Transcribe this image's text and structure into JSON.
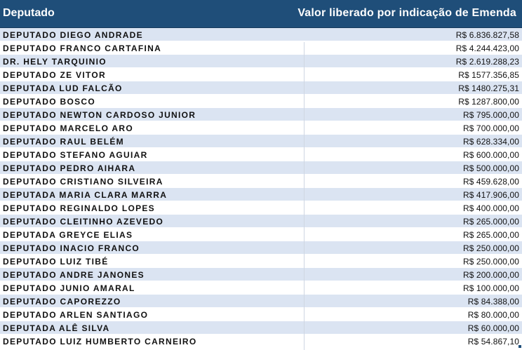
{
  "table": {
    "header": {
      "col_name": "Deputado",
      "col_value": "Valor liberado por indicação de Emenda"
    },
    "rows": [
      {
        "name": "DEPUTADO DIEGO ANDRADE",
        "value": "R$ 6.836.827,58"
      },
      {
        "name": "DEPUTADO FRANCO CARTAFINA",
        "value": "R$ 4.244.423,00"
      },
      {
        "name": "DR. HELY TARQUINIO",
        "value": "R$ 2.619.288,23"
      },
      {
        "name": "DEPUTADO ZE VITOR",
        "value": "R$ 1577.356,85"
      },
      {
        "name": "DEPUTADA LUD FALCÃO",
        "value": "R$ 1480.275,31"
      },
      {
        "name": "DEPUTADO BOSCO",
        "value": "R$ 1287.800,00"
      },
      {
        "name": "DEPUTADO NEWTON CARDOSO JUNIOR",
        "value": "R$ 795.000,00"
      },
      {
        "name": "DEPUTADO MARCELO ARO",
        "value": "R$ 700.000,00"
      },
      {
        "name": "DEPUTADO  RAUL BELÉM",
        "value": "R$ 628.334,00"
      },
      {
        "name": "DEPUTADO STEFANO AGUIAR",
        "value": "R$ 600.000,00"
      },
      {
        "name": "DEPUTADO PEDRO AIHARA",
        "value": "R$ 500.000,00"
      },
      {
        "name": "DEPUTADO CRISTIANO SILVEIRA",
        "value": "R$ 459.628,00"
      },
      {
        "name": "DEPUTADA MARIA CLARA MARRA",
        "value": "R$ 417.906,00"
      },
      {
        "name": "DEPUTADO REGINALDO LOPES",
        "value": "R$ 400.000,00"
      },
      {
        "name": "DEPUTADO CLEITINHO AZEVEDO",
        "value": "R$ 265.000,00"
      },
      {
        "name": "DEPUTADA GREYCE ELIAS",
        "value": "R$ 265.000,00"
      },
      {
        "name": "DEPUTADO INACIO FRANCO",
        "value": "R$ 250.000,00"
      },
      {
        "name": "DEPUTADO LUIZ TIBÉ",
        "value": "R$ 250.000,00"
      },
      {
        "name": "DEPUTADO ANDRE JANONES",
        "value": "R$ 200.000,00"
      },
      {
        "name": "DEPUTADO JUNIO AMARAL",
        "value": "R$ 100.000,00"
      },
      {
        "name": "DEPUTADO CAPOREZZO",
        "value": "R$ 84.388,00"
      },
      {
        "name": "DEPUTADO ARLEN SANTIAGO",
        "value": "R$ 80.000,00"
      },
      {
        "name": "DEPUTADA ALÊ SILVA",
        "value": "R$ 60.000,00"
      },
      {
        "name": "DEPUTADO LUIZ HUMBERTO CARNEIRO",
        "value": "R$ 54.867,10"
      }
    ]
  },
  "colors": {
    "header_bg": "#1f4e79",
    "row_odd_bg": "#dbe4f2",
    "row_even_bg": "#ffffff"
  }
}
